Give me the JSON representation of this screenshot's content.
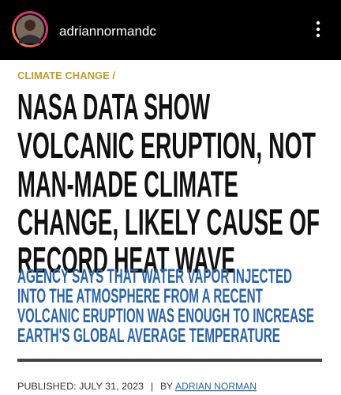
{
  "header": {
    "username": "adriannormandc"
  },
  "article": {
    "category": "CLIMATE CHANGE /",
    "headline_lines": [
      "NASA DATA SHOW",
      "VOLCANIC ERUPTION, NOT",
      "MAN-MADE CLIMATE",
      "CHANGE, LIKELY CAUSE OF",
      "RECORD HEAT WAVE"
    ],
    "subheadline_lines": [
      "AGENCY SAYS THAT WATER VAPOR INJECTED",
      "INTO THE ATMOSPHERE FROM A RECENT",
      "VOLCANIC ERUPTION WAS ENOUGH TO INCREASE",
      "EARTH'S GLOBAL AVERAGE TEMPERATURE"
    ],
    "byline": {
      "published": "PUBLISHED: JULY 31, 2023",
      "separator": "|",
      "by": "BY",
      "author": "ADRIAN NORMAN"
    }
  }
}
